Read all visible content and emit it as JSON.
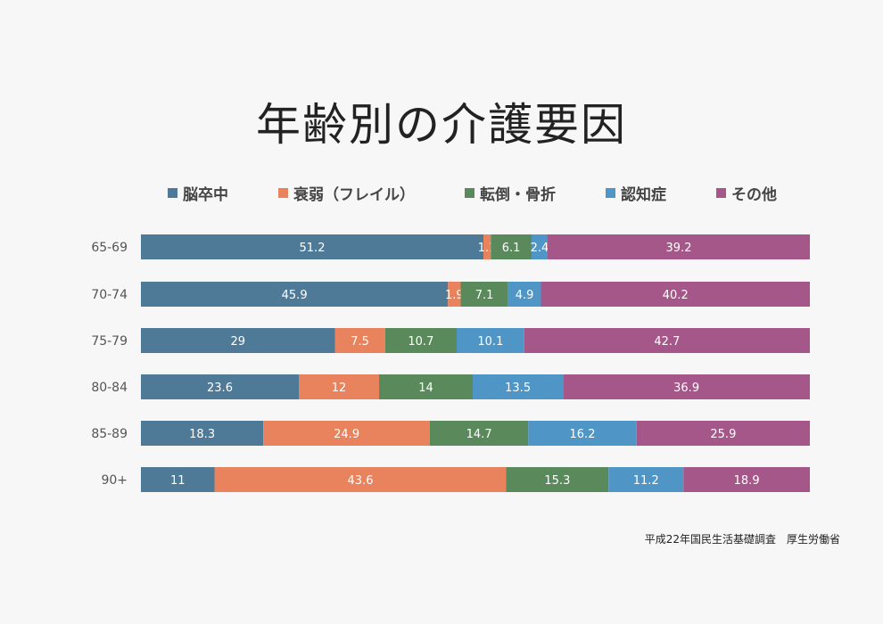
{
  "title": "年齢別の介護要因",
  "source": "平成22年国民生活基礎調査　厚生労働省",
  "chart_data": {
    "type": "bar",
    "stacked": true,
    "normalized": true,
    "orientation": "horizontal",
    "title": "年齢別の介護要因",
    "legend_position": "top",
    "grid": false,
    "categories": [
      "65-69",
      "70-74",
      "75-79",
      "80-84",
      "85-89",
      "90+"
    ],
    "series": [
      {
        "name": "脳卒中",
        "color": "#4e7a98",
        "values": [
          51.2,
          45.9,
          29,
          23.6,
          18.3,
          11
        ],
        "labels": [
          "51.2",
          "45.9",
          "29",
          "23.6",
          "18.3",
          "11"
        ]
      },
      {
        "name": "衰弱（フレイル）",
        "color": "#e9835e",
        "values": [
          1.1,
          1.9,
          7.5,
          12,
          24.9,
          43.6
        ],
        "labels": [
          "1.1",
          "1.9",
          "7.5",
          "12",
          "24.9",
          "43.6"
        ]
      },
      {
        "name": "転倒・骨折",
        "color": "#5a8a5c",
        "values": [
          6.1,
          7.1,
          10.7,
          14,
          14.7,
          15.3
        ],
        "labels": [
          "6.1",
          "7.1",
          "10.7",
          "14",
          "14.7",
          "15.3"
        ]
      },
      {
        "name": "認知症",
        "color": "#4f95c6",
        "values": [
          2.4,
          4.9,
          10.1,
          13.5,
          16.2,
          11.2
        ],
        "labels": [
          "2.4",
          "4.9",
          "10.1",
          "13.5",
          "16.2",
          "11.2"
        ]
      },
      {
        "name": "その他",
        "color": "#a5578a",
        "values": [
          39.2,
          40.2,
          42.7,
          36.9,
          25.9,
          18.9
        ],
        "labels": [
          "39.2",
          "40.2",
          "42.7",
          "36.9",
          "25.9",
          "18.9"
        ]
      }
    ]
  }
}
